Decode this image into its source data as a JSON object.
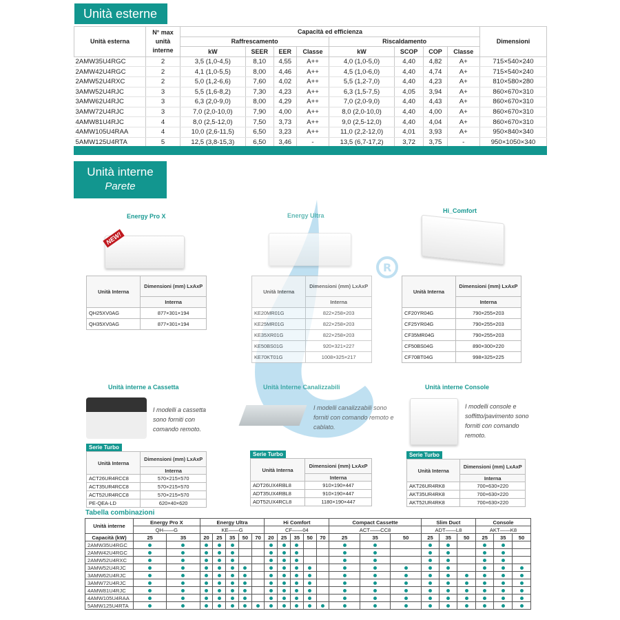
{
  "colors": {
    "accent": "#12968f",
    "watermark": "#4aa8d8"
  },
  "outdoor": {
    "title": "Unità esterne",
    "headers": {
      "unit": "Unità esterna",
      "max": "N° max unità interne",
      "group": "Capacità ed efficienza",
      "cool": "Raffrescamento",
      "heat": "Riscaldamento",
      "dim": "Dimensioni",
      "cols": [
        "kW",
        "SEER",
        "EER",
        "Classe",
        "kW",
        "SCOP",
        "COP",
        "Classe"
      ]
    },
    "rows": [
      [
        "2AMW35U4RGC",
        "2",
        "3,5 (1,0-4,5)",
        "8,10",
        "4,55",
        "A++",
        "4,0 (1,0-5,0)",
        "4,40",
        "4,82",
        "A+",
        "715×540×240"
      ],
      [
        "2AMW42U4RGC",
        "2",
        "4,1 (1,0-5,5)",
        "8,00",
        "4,46",
        "A++",
        "4,5 (1,0-6,0)",
        "4,40",
        "4,74",
        "A+",
        "715×540×240"
      ],
      [
        "2AMW52U4RXC",
        "2",
        "5,0 (1,2-6,6)",
        "7,60",
        "4,02",
        "A++",
        "5,5 (1,2-7,0)",
        "4,40",
        "4,23",
        "A+",
        "810×580×280"
      ],
      [
        "3AMW52U4RJC",
        "3",
        "5,5 (1,6-8,2)",
        "7,30",
        "4,23",
        "A++",
        "6,3 (1,5-7,5)",
        "4,05",
        "3,94",
        "A+",
        "860×670×310"
      ],
      [
        "3AMW62U4RJC",
        "3",
        "6,3 (2,0-9,0)",
        "8,00",
        "4,29",
        "A++",
        "7,0 (2,0-9,0)",
        "4,40",
        "4,43",
        "A+",
        "860×670×310"
      ],
      [
        "3AMW72U4RJC",
        "3",
        "7,0 (2,0-10,0)",
        "7,90",
        "4,00",
        "A++",
        "8,0 (2,0-10,0)",
        "4,40",
        "4,00",
        "A+",
        "860×670×310"
      ],
      [
        "4AMW81U4RJC",
        "4",
        "8,0 (2,5-12,0)",
        "7,50",
        "3,73",
        "A++",
        "9,0 (2,5-12,0)",
        "4,40",
        "4,04",
        "A+",
        "860×670×310"
      ],
      [
        "4AMW105U4RAA",
        "4",
        "10,0 (2,6-11,5)",
        "6,50",
        "3,23",
        "A++",
        "11,0 (2,2-12,0)",
        "4,01",
        "3,93",
        "A+",
        "950×840×340"
      ],
      [
        "5AMW125U4RTA",
        "5",
        "12,5 (3,8-15,3)",
        "6,50",
        "3,46",
        "-",
        "13,5 (6,7-17,2)",
        "3,72",
        "3,75",
        "-",
        "950×1050×340"
      ]
    ]
  },
  "indoor": {
    "title": "Unità interne",
    "subtitle": "Parete",
    "watermark_mark": "®"
  },
  "wall": [
    {
      "name": "Energy Pro X",
      "badge": "NEW!",
      "h_unit": "Unità Interna",
      "h_dim": "Dimensioni (mm) LxAxP",
      "h_sub": "Interna",
      "rows": [
        [
          "QH25XV0AG",
          "877×301×194"
        ],
        [
          "QH35XV0AG",
          "877×301×194"
        ]
      ]
    },
    {
      "name": "Energy Ultra",
      "h_unit": "Unità Interna",
      "h_dim": "Dimensioni (mm) LxAxP",
      "h_sub": "Interna",
      "rows": [
        [
          "KE20MR01G",
          "822×258×203"
        ],
        [
          "KE25MR01G",
          "822×258×203"
        ],
        [
          "KE35XR01G",
          "822×258×203"
        ],
        [
          "KE50BS01G",
          "920×321×227"
        ],
        [
          "KE70KT01G",
          "1008×325×217"
        ]
      ]
    },
    {
      "name": "Hi_Comfort",
      "h_unit": "Unità Interna",
      "h_dim": "Dimensioni (mm) LxAxP",
      "h_sub": "Interna",
      "rows": [
        [
          "CF20YR04G",
          "790×255×203"
        ],
        [
          "CF25YR04G",
          "790×255×203"
        ],
        [
          "CF35MR04G",
          "790×255×203"
        ],
        [
          "CF50BS04G",
          "890×300×220"
        ],
        [
          "CF70BT04G",
          "998×325×225"
        ]
      ]
    }
  ],
  "other": [
    {
      "name": "Unità interne a Cassetta",
      "desc": "I modelli a cassetta sono forniti con comando remoto.",
      "series": "Serie Turbo",
      "h_unit": "Unità Interna",
      "h_dim": "Dimensioni (mm) LxAxP",
      "h_sub": "Interna",
      "rows": [
        [
          "ACT26UR4RCC8",
          "570×215×570"
        ],
        [
          "ACT35UR4RCC8",
          "570×215×570"
        ],
        [
          "ACT52UR4RCC8",
          "570×215×570"
        ],
        [
          "PE-QEA-LD",
          "620×40×620"
        ]
      ]
    },
    {
      "name": "Unità Interne Canalizzabili",
      "desc": "I modelli canalizzabili sono forniti con comando remoto e cablato.",
      "series": "Serie Turbo",
      "h_unit": "Unità Interna",
      "h_dim": "Dimensioni (mm) LxAxP",
      "h_sub": "Interna",
      "rows": [
        [
          "ADT26UX4RBL8",
          "910×190×447"
        ],
        [
          "ADT35UX4RBL8",
          "910×190×447"
        ],
        [
          "ADT52UX4RCL8",
          "1180×190×447"
        ]
      ]
    },
    {
      "name": "Unità interne Console",
      "desc": "I modelli console e soffitto/pavimento sono forniti con comando remoto.",
      "series": "Serie Turbo",
      "h_unit": "Unità Interna",
      "h_dim": "Dimensioni (mm) LxAxP",
      "h_sub": "Interna",
      "rows": [
        [
          "AKT26UR4RK8",
          "700×630×220"
        ],
        [
          "AKT35UR4RK8",
          "700×630×220"
        ],
        [
          "AKT52UR4RK8",
          "700×630×220"
        ]
      ]
    }
  ],
  "combo": {
    "title": "Tabella combinazioni",
    "h_unit": "Unità interne",
    "h_cap": "Capacità (kW)",
    "groups": [
      {
        "name": "Energy Pro X",
        "code": "QH——G",
        "caps": [
          "25",
          "35"
        ]
      },
      {
        "name": "Energy Ultra",
        "code": "KE——G",
        "caps": [
          "20",
          "25",
          "35",
          "50",
          "70"
        ]
      },
      {
        "name": "Hi Comfort",
        "code": "CF——04",
        "caps": [
          "20",
          "25",
          "35",
          "50",
          "70"
        ]
      },
      {
        "name": "Compact Cassette",
        "code": "ACT——CC8",
        "caps": [
          "25",
          "35",
          "50"
        ]
      },
      {
        "name": "Slim Duct",
        "code": "ADT——L8",
        "caps": [
          "25",
          "35",
          "50"
        ]
      },
      {
        "name": "Console",
        "code": "AKT——K8",
        "caps": [
          "25",
          "35",
          "50"
        ]
      }
    ],
    "rows": [
      {
        "unit": "2AMW35U4RGC",
        "ok": [
          1,
          1,
          1,
          1,
          1,
          0,
          0,
          1,
          1,
          1,
          0,
          0,
          1,
          1,
          0,
          1,
          1,
          0,
          1,
          1,
          0
        ]
      },
      {
        "unit": "2AMW42U4RGC",
        "ok": [
          1,
          1,
          1,
          1,
          1,
          0,
          0,
          1,
          1,
          1,
          0,
          0,
          1,
          1,
          0,
          1,
          1,
          0,
          1,
          1,
          0
        ]
      },
      {
        "unit": "2AMW52U4RXC",
        "ok": [
          1,
          1,
          1,
          1,
          1,
          0,
          0,
          1,
          1,
          1,
          0,
          0,
          1,
          1,
          0,
          1,
          1,
          0,
          1,
          1,
          0
        ]
      },
      {
        "unit": "3AMW52U4RJC",
        "ok": [
          1,
          1,
          1,
          1,
          1,
          1,
          0,
          1,
          1,
          1,
          1,
          0,
          1,
          1,
          1,
          1,
          1,
          0,
          1,
          1,
          1
        ]
      },
      {
        "unit": "3AMW62U4RJC",
        "ok": [
          1,
          1,
          1,
          1,
          1,
          1,
          0,
          1,
          1,
          1,
          1,
          0,
          1,
          1,
          1,
          1,
          1,
          1,
          1,
          1,
          1
        ]
      },
      {
        "unit": "3AMW72U4RJC",
        "ok": [
          1,
          1,
          1,
          1,
          1,
          1,
          0,
          1,
          1,
          1,
          1,
          0,
          1,
          1,
          1,
          1,
          1,
          1,
          1,
          1,
          1
        ]
      },
      {
        "unit": "4AMW81U4RJC",
        "ok": [
          1,
          1,
          1,
          1,
          1,
          1,
          0,
          1,
          1,
          1,
          1,
          0,
          1,
          1,
          1,
          1,
          1,
          1,
          1,
          1,
          1
        ]
      },
      {
        "unit": "4AMW105U4RAA",
        "ok": [
          1,
          1,
          1,
          1,
          1,
          1,
          0,
          1,
          1,
          1,
          1,
          0,
          1,
          1,
          1,
          1,
          1,
          1,
          1,
          1,
          1
        ]
      },
      {
        "unit": "5AMW125U4RTA",
        "ok": [
          1,
          1,
          1,
          1,
          1,
          1,
          1,
          1,
          1,
          1,
          1,
          1,
          1,
          1,
          1,
          1,
          1,
          1,
          1,
          1,
          1
        ]
      }
    ]
  }
}
